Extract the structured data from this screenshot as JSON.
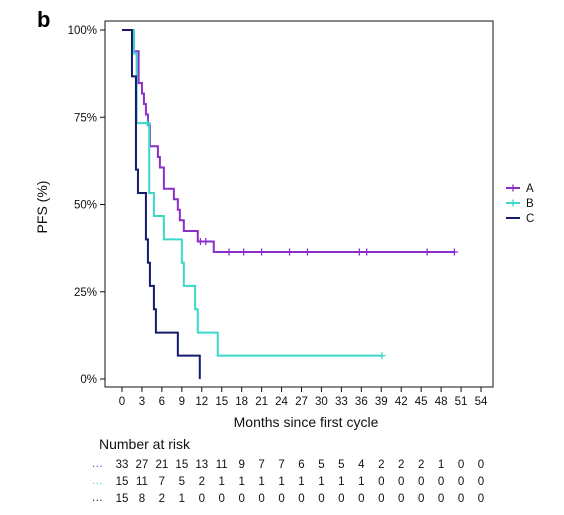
{
  "panel_label": "b",
  "colors": {
    "A": "#8b2fc9",
    "B": "#3bd7c9",
    "C": "#141a6e"
  },
  "chart_data": {
    "type": "line",
    "subtype": "kaplan-meier-step",
    "xlabel": "Months since first cycle",
    "ylabel": "PFS (%)",
    "xlim": [
      0,
      54
    ],
    "ylim": [
      0,
      100
    ],
    "x_ticks": [
      0,
      3,
      6,
      9,
      12,
      15,
      18,
      21,
      24,
      27,
      30,
      33,
      36,
      39,
      42,
      45,
      48,
      51,
      54
    ],
    "x_tick_labels": [
      "0",
      "3",
      "6",
      "9",
      "12",
      "15",
      "18",
      "21",
      "24",
      "27",
      "30",
      "33",
      "36",
      "39",
      "42",
      "45",
      "48",
      "51",
      "54"
    ],
    "y_ticks": [
      0,
      25,
      50,
      75,
      100
    ],
    "y_tick_labels": [
      "0%",
      "25%",
      "50%",
      "75%",
      "100%"
    ],
    "grid": false,
    "legend_position": "right",
    "series": [
      {
        "name": "A",
        "steps": [
          [
            0,
            100
          ],
          [
            1.8,
            93.9
          ],
          [
            2.5,
            84.8
          ],
          [
            3.0,
            81.8
          ],
          [
            3.3,
            78.8
          ],
          [
            3.6,
            75.8
          ],
          [
            3.9,
            72.7
          ],
          [
            4.2,
            66.7
          ],
          [
            5.4,
            63.6
          ],
          [
            5.7,
            60.6
          ],
          [
            6.3,
            54.5
          ],
          [
            7.8,
            51.5
          ],
          [
            8.4,
            48.5
          ],
          [
            8.7,
            45.5
          ],
          [
            9.3,
            42.4
          ],
          [
            11.4,
            39.4
          ],
          [
            13.8,
            36.4
          ],
          [
            50,
            36.4
          ]
        ],
        "censored": [
          [
            11.8,
            39.4
          ],
          [
            12.6,
            39.4
          ],
          [
            16.1,
            36.4
          ],
          [
            18.3,
            36.4
          ],
          [
            21.0,
            36.4
          ],
          [
            25.2,
            36.4
          ],
          [
            27.9,
            36.4
          ],
          [
            35.7,
            36.4
          ],
          [
            36.8,
            36.4
          ],
          [
            45.9,
            36.4
          ],
          [
            50,
            36.4
          ]
        ]
      },
      {
        "name": "B",
        "steps": [
          [
            0,
            100
          ],
          [
            1.8,
            93.3
          ],
          [
            2.2,
            73.3
          ],
          [
            4.1,
            53.3
          ],
          [
            4.8,
            46.7
          ],
          [
            6.3,
            40.0
          ],
          [
            9.0,
            33.3
          ],
          [
            9.3,
            26.7
          ],
          [
            11.0,
            20.0
          ],
          [
            11.4,
            13.3
          ],
          [
            14.4,
            6.7
          ],
          [
            39.1,
            6.7
          ]
        ],
        "censored": [
          [
            3.8,
            73.3
          ],
          [
            39.1,
            6.7
          ]
        ]
      },
      {
        "name": "C",
        "steps": [
          [
            0,
            100
          ],
          [
            1.5,
            86.7
          ],
          [
            2.1,
            60.0
          ],
          [
            2.4,
            53.3
          ],
          [
            3.6,
            40.0
          ],
          [
            3.9,
            33.3
          ],
          [
            4.2,
            26.7
          ],
          [
            4.8,
            20.0
          ],
          [
            5.1,
            13.3
          ],
          [
            8.4,
            6.7
          ],
          [
            11.7,
            0
          ]
        ],
        "censored": []
      }
    ]
  },
  "risk_table": {
    "title": "Number at risk",
    "rows": [
      {
        "name": "A",
        "values": [
          "33",
          "27",
          "21",
          "15",
          "13",
          "11",
          "9",
          "7",
          "7",
          "6",
          "5",
          "5",
          "4",
          "2",
          "2",
          "2",
          "1",
          "0",
          "0"
        ]
      },
      {
        "name": "B",
        "values": [
          "15",
          "11",
          "7",
          "5",
          "2",
          "1",
          "1",
          "1",
          "1",
          "1",
          "1",
          "1",
          "1",
          "0",
          "0",
          "0",
          "0",
          "0",
          "0"
        ]
      },
      {
        "name": "C",
        "values": [
          "15",
          "8",
          "2",
          "1",
          "0",
          "0",
          "0",
          "0",
          "0",
          "0",
          "0",
          "0",
          "0",
          "0",
          "0",
          "0",
          "0",
          "0",
          "0"
        ]
      }
    ]
  }
}
